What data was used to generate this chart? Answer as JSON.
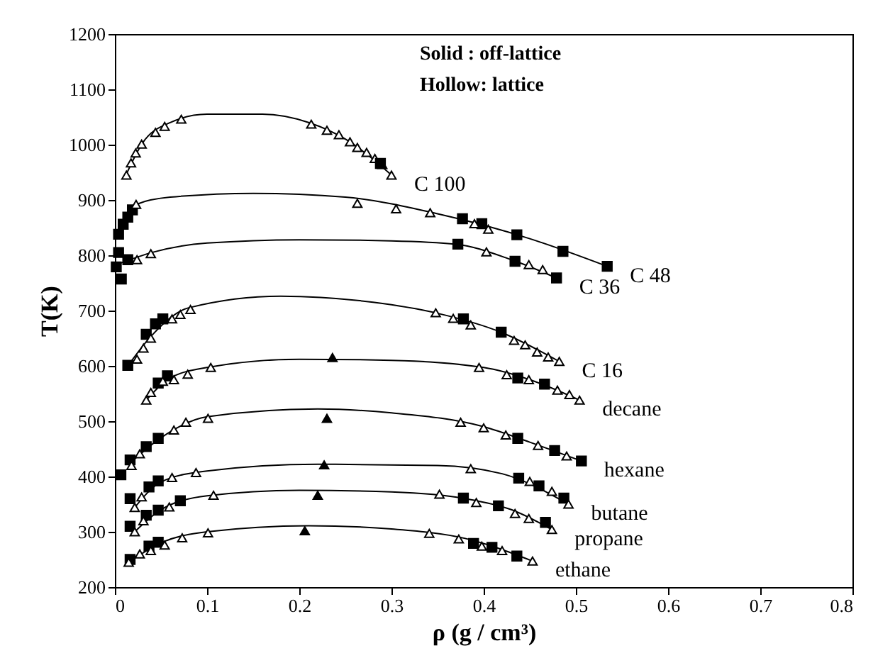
{
  "chart_data": {
    "type": "scatter",
    "xlabel": "ρ (g / cm³)",
    "ylabel": "T(K)",
    "xlim": [
      0,
      0.8
    ],
    "xticks": [
      0,
      0.1,
      0.2,
      0.3,
      0.4,
      0.5,
      0.6,
      0.7,
      0.8
    ],
    "ylim": [
      200,
      1200
    ],
    "yticks": [
      200,
      300,
      400,
      500,
      600,
      700,
      800,
      900,
      1000,
      1100,
      1200
    ],
    "grid": false,
    "annotations": [
      "Solid    : off-lattice",
      "Hollow: lattice"
    ],
    "series": [
      {
        "type": "line",
        "name": "C 100",
        "color": "#000000",
        "x": [
          0.012,
          0.03,
          0.06,
          0.1,
          0.16,
          0.21,
          0.25,
          0.3
        ],
        "values": [
          945,
          1003,
          1040,
          1055,
          1055,
          1040,
          1010,
          945
        ]
      },
      {
        "color": "#ffffff",
        "marker": "triangle",
        "x": [
          0.0125,
          0.0175,
          0.0226,
          0.029,
          0.044,
          0.054,
          0.072,
          0.213,
          0.23,
          0.243,
          0.255,
          0.263,
          0.273,
          0.282,
          0.29,
          0.3
        ],
        "values": [
          945,
          967,
          985,
          1001,
          1022,
          1033,
          1046,
          1037,
          1026,
          1018,
          1005,
          995,
          986,
          975,
          964,
          945
        ]
      },
      {
        "color": "#000000",
        "marker": "square",
        "x": [
          0.288
        ],
        "values": [
          966
        ]
      },
      {
        "type": "line",
        "name": "C 48",
        "color": "#000000",
        "x": [
          0.004,
          0.014,
          0.025,
          0.06,
          0.15,
          0.25,
          0.35,
          0.45,
          0.534
        ],
        "values": [
          838,
          869,
          893,
          905,
          912,
          905,
          875,
          830,
          780
        ]
      },
      {
        "color": "#000000",
        "marker": "square",
        "x": [
          0.004,
          0.009,
          0.014,
          0.019,
          0.377,
          0.398,
          0.436,
          0.486,
          0.534
        ],
        "values": [
          838,
          856,
          869,
          882,
          866,
          857,
          837,
          807,
          780
        ]
      },
      {
        "color": "#ffffff",
        "marker": "triangle",
        "x": [
          0.023,
          0.263,
          0.305,
          0.342,
          0.39,
          0.405
        ],
        "values": [
          892,
          894,
          884,
          877,
          857,
          847
        ]
      },
      {
        "type": "line",
        "name": "C 36",
        "color": "#000000",
        "x": [
          0.005,
          0.04,
          0.1,
          0.2,
          0.3,
          0.37,
          0.43,
          0.479
        ],
        "values": [
          785,
          805,
          822,
          828,
          826,
          820,
          792,
          759
        ]
      },
      {
        "color": "#000000",
        "marker": "square",
        "x": [
          0.0015,
          0.004,
          0.007,
          0.014,
          0.372,
          0.434,
          0.479
        ],
        "values": [
          779,
          805,
          757,
          792,
          820,
          789,
          759
        ]
      },
      {
        "color": "#ffffff",
        "marker": "triangle",
        "x": [
          0.024,
          0.039,
          0.403,
          0.449,
          0.464
        ],
        "values": [
          792,
          803,
          806,
          783,
          774
        ]
      },
      {
        "type": "line",
        "name": "C 16",
        "color": "#000000",
        "x": [
          0.014,
          0.04,
          0.08,
          0.18,
          0.28,
          0.35,
          0.42,
          0.482
        ],
        "values": [
          600,
          655,
          705,
          726,
          715,
          695,
          660,
          608
        ]
      },
      {
        "color": "#000000",
        "marker": "square",
        "x": [
          0.014,
          0.034,
          0.044,
          0.052,
          0.378,
          0.419
        ],
        "values": [
          601,
          657,
          676,
          685,
          685,
          661
        ]
      },
      {
        "color": "#ffffff",
        "marker": "triangle",
        "x": [
          0.024,
          0.031,
          0.039,
          0.062,
          0.071,
          0.082,
          0.348,
          0.367,
          0.386,
          0.433,
          0.445,
          0.458,
          0.47,
          0.482
        ],
        "values": [
          612,
          632,
          650,
          685,
          693,
          702,
          696,
          686,
          674,
          646,
          638,
          625,
          616,
          608
        ]
      },
      {
        "type": "line",
        "name": "decane",
        "color": "#000000",
        "x": [
          0.034,
          0.06,
          0.1,
          0.2,
          0.3,
          0.4,
          0.45,
          0.504
        ],
        "values": [
          538,
          578,
          597,
          612,
          610,
          597,
          575,
          538
        ]
      },
      {
        "color": "#000000",
        "marker": "square",
        "x": [
          0.047,
          0.057,
          0.437,
          0.466
        ],
        "values": [
          569,
          582,
          578,
          567
        ]
      },
      {
        "color": "#ffffff",
        "marker": "triangle",
        "x": [
          0.034,
          0.039,
          0.052,
          0.064,
          0.079,
          0.104,
          0.395,
          0.425,
          0.449,
          0.48,
          0.493,
          0.504
        ],
        "values": [
          538,
          552,
          572,
          575,
          585,
          597,
          597,
          584,
          575,
          556,
          548,
          538
        ]
      },
      {
        "color": "#000000",
        "marker": "triangle",
        "x": [
          0.236
        ],
        "values": [
          615
        ]
      },
      {
        "type": "line",
        "name": "hexane",
        "color": "#000000",
        "x": [
          0.017,
          0.05,
          0.1,
          0.22,
          0.3,
          0.4,
          0.45,
          0.506
        ],
        "values": [
          425,
          470,
          508,
          522,
          515,
          490,
          462,
          428
        ]
      },
      {
        "color": "#000000",
        "marker": "square",
        "x": [
          0.0065,
          0.0165,
          0.034,
          0.047,
          0.437,
          0.477,
          0.506
        ],
        "values": [
          403,
          430,
          454,
          469,
          469,
          447,
          428
        ]
      },
      {
        "color": "#ffffff",
        "marker": "triangle",
        "x": [
          0.018,
          0.027,
          0.064,
          0.077,
          0.101,
          0.375,
          0.4,
          0.424,
          0.459,
          0.49
        ],
        "values": [
          420,
          441,
          484,
          498,
          505,
          498,
          488,
          475,
          456,
          437
        ]
      },
      {
        "color": "#000000",
        "marker": "triangle",
        "x": [
          0.23
        ],
        "values": [
          505
        ]
      },
      {
        "type": "line",
        "name": "butane",
        "color": "#000000",
        "x": [
          0.0215,
          0.05,
          0.1,
          0.22,
          0.35,
          0.42,
          0.492
        ],
        "values": [
          344,
          390,
          410,
          422,
          420,
          405,
          350
        ]
      },
      {
        "color": "#000000",
        "marker": "square",
        "x": [
          0.0165,
          0.037,
          0.047,
          0.438,
          0.46,
          0.487
        ],
        "values": [
          360,
          381,
          392,
          397,
          383,
          361
        ]
      },
      {
        "color": "#ffffff",
        "marker": "triangle",
        "x": [
          0.0215,
          0.029,
          0.062,
          0.088,
          0.386,
          0.45,
          0.474,
          0.492
        ],
        "values": [
          344,
          363,
          398,
          407,
          414,
          391,
          373,
          350
        ]
      },
      {
        "color": "#000000",
        "marker": "triangle",
        "x": [
          0.227
        ],
        "values": [
          421
        ]
      },
      {
        "type": "line",
        "name": "propane",
        "color": "#000000",
        "x": [
          0.0215,
          0.05,
          0.1,
          0.2,
          0.3,
          0.38,
          0.43,
          0.474
        ],
        "values": [
          300,
          340,
          365,
          375,
          372,
          360,
          340,
          304
        ]
      },
      {
        "color": "#000000",
        "marker": "square",
        "x": [
          0.0165,
          0.034,
          0.047,
          0.071,
          0.378,
          0.416,
          0.467
        ],
        "values": [
          310,
          330,
          339,
          356,
          361,
          347,
          317
        ]
      },
      {
        "color": "#ffffff",
        "marker": "triangle",
        "x": [
          0.0215,
          0.031,
          0.059,
          0.107,
          0.352,
          0.392,
          0.434,
          0.449,
          0.474
        ],
        "values": [
          300,
          320,
          345,
          366,
          368,
          353,
          333,
          324,
          304
        ]
      },
      {
        "color": "#000000",
        "marker": "triangle",
        "x": [
          0.22
        ],
        "values": [
          366
        ]
      },
      {
        "type": "line",
        "name": "ethane",
        "color": "#000000",
        "x": [
          0.015,
          0.05,
          0.1,
          0.21,
          0.3,
          0.38,
          0.453
        ],
        "values": [
          245,
          280,
          300,
          311,
          305,
          288,
          247
        ]
      },
      {
        "color": "#000000",
        "marker": "square",
        "x": [
          0.0165,
          0.037,
          0.047,
          0.389,
          0.409,
          0.436
        ],
        "values": [
          250,
          274,
          281,
          279,
          272,
          256
        ]
      },
      {
        "color": "#ffffff",
        "marker": "triangle",
        "x": [
          0.015,
          0.027,
          0.039,
          0.054,
          0.073,
          0.101,
          0.341,
          0.373,
          0.398,
          0.42,
          0.453
        ],
        "values": [
          245,
          260,
          266,
          276,
          289,
          298,
          297,
          287,
          274,
          266,
          247
        ]
      },
      {
        "color": "#000000",
        "marker": "triangle",
        "x": [
          0.206
        ],
        "values": [
          302
        ]
      }
    ]
  }
}
